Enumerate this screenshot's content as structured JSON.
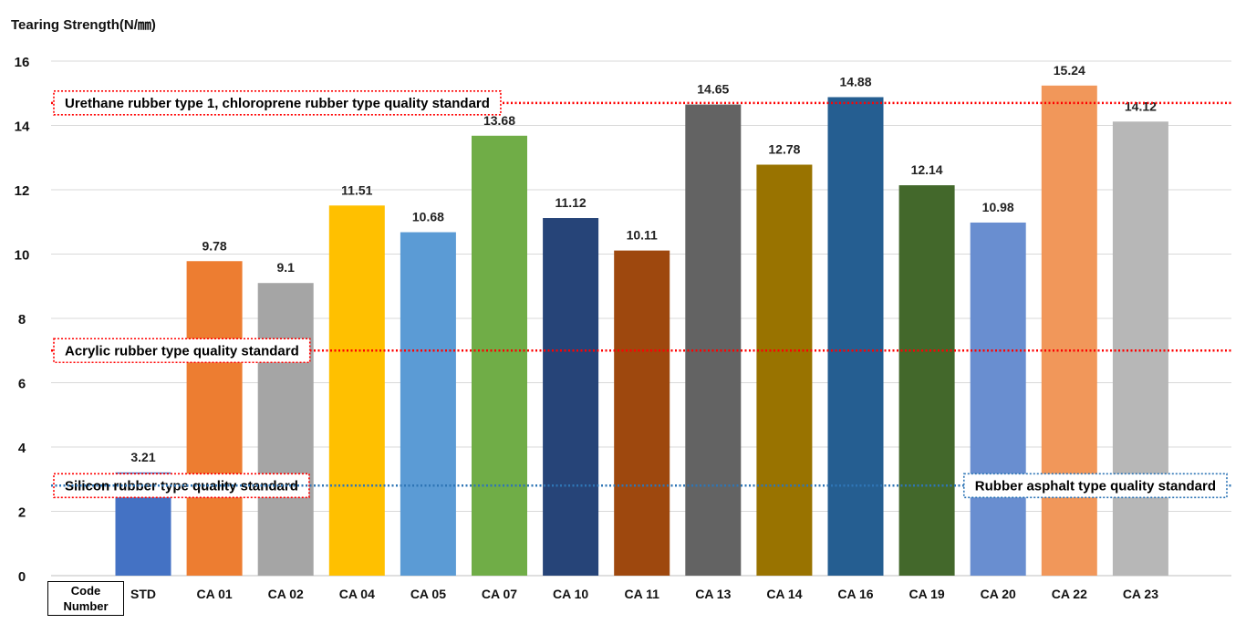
{
  "chart_data": {
    "type": "bar",
    "ylabel": "Tearing Strength(N/㎜)",
    "xlabel_box": [
      "Code",
      "Number"
    ],
    "categories": [
      "STD",
      "CA 01",
      "CA 02",
      "CA 04",
      "CA 05",
      "CA 07",
      "CA 10",
      "CA 11",
      "CA 13",
      "CA 14",
      "CA 16",
      "CA 19",
      "CA 20",
      "CA 22",
      "CA 23"
    ],
    "values": [
      3.21,
      9.78,
      9.1,
      11.51,
      10.68,
      13.68,
      11.12,
      10.11,
      14.65,
      12.78,
      14.88,
      12.14,
      10.98,
      15.24,
      14.12
    ],
    "value_labels": [
      "3.21",
      "9.78",
      "9.1",
      "11.51",
      "10.68",
      "13.68",
      "11.12",
      "10.11",
      "14.65",
      "12.78",
      "14.88",
      "12.14",
      "10.98",
      "15.24",
      "14.12"
    ],
    "colors": [
      "#4472c4",
      "#ed7d31",
      "#a5a5a5",
      "#ffc000",
      "#5b9bd5",
      "#70ad47",
      "#264478",
      "#9e480e",
      "#636363",
      "#997300",
      "#255e91",
      "#43682b",
      "#698ed0",
      "#f1975a",
      "#b7b7b7"
    ],
    "ylim": [
      0,
      16
    ],
    "yticks": [
      0,
      2,
      4,
      6,
      8,
      10,
      12,
      14,
      16
    ],
    "grid": true,
    "reference_lines": [
      {
        "name": "Urethane rubber type 1, chloroprene rubber type quality standard",
        "value": 14.7,
        "color": "#ff0000",
        "label_side": "left"
      },
      {
        "name": "Acrylic rubber type quality standard",
        "value": 7.0,
        "color": "#ff0000",
        "label_side": "left"
      },
      {
        "name": "Silicon rubber type quality standard",
        "value": 2.8,
        "color": "#ff0000",
        "label_side": "left"
      },
      {
        "name": "Rubber asphalt type quality standard",
        "value": 2.8,
        "color": "#2e75b6",
        "label_side": "right"
      }
    ]
  }
}
